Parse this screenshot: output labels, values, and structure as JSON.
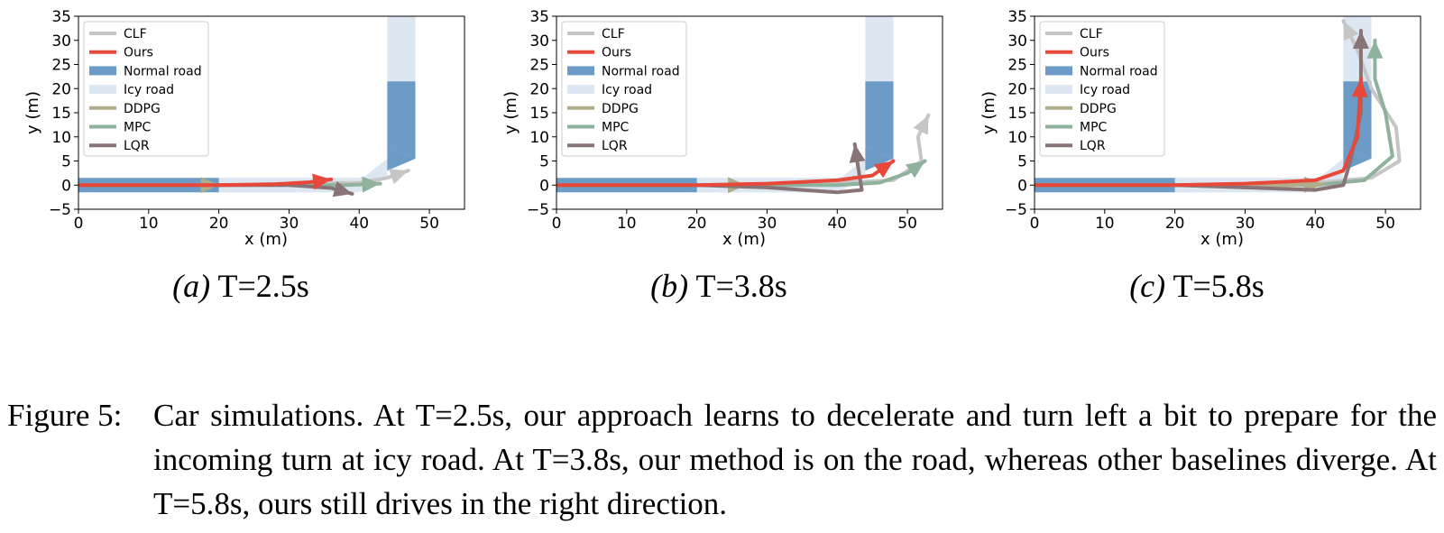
{
  "figure": {
    "number_label": "Figure 5:",
    "caption": "Car simulations. At T=2.5s, our approach learns to decelerate and turn left a bit to prepare for the incoming turn at icy road. At T=3.8s, our method is on the road, whereas other baselines diverge. At T=5.8s, ours still drives in the right direction."
  },
  "colors": {
    "CLF": "#c6c6c6",
    "Ours": "#e8483a",
    "Normal road": "#6b9bc6",
    "Icy road": "#dde7f1",
    "DDPG": "#b1ad8a",
    "MPC": "#8fb29c",
    "LQR": "#887476"
  },
  "legend": [
    {
      "label": "CLF",
      "kind": "line"
    },
    {
      "label": "Ours",
      "kind": "line"
    },
    {
      "label": "Normal road",
      "kind": "patch"
    },
    {
      "label": "Icy road",
      "kind": "patch"
    },
    {
      "label": "DDPG",
      "kind": "line"
    },
    {
      "label": "MPC",
      "kind": "line"
    },
    {
      "label": "LQR",
      "kind": "line"
    }
  ],
  "chart_data": [
    {
      "type": "line",
      "subcaption_letter": "(a)",
      "subcaption_text": "T=2.5s",
      "xlabel": "x (m)",
      "ylabel": "y (m)",
      "xlim": [
        0,
        55
      ],
      "ylim": [
        -5,
        35
      ],
      "xticks": [
        0,
        10,
        20,
        30,
        40,
        50
      ],
      "yticks": [
        -5,
        0,
        5,
        10,
        15,
        20,
        25,
        30,
        35
      ],
      "legend_position": "upper-left",
      "series": [
        {
          "name": "CLF",
          "x": [
            0,
            10,
            20,
            30,
            40,
            44,
            47
          ],
          "y": [
            0,
            0,
            0,
            0.3,
            0.5,
            1.5,
            3.0
          ]
        },
        {
          "name": "MPC",
          "x": [
            0,
            10,
            20,
            30,
            38,
            43
          ],
          "y": [
            0,
            0,
            0,
            0,
            0,
            0.3
          ]
        },
        {
          "name": "DDPG",
          "x": [
            0,
            10,
            20
          ],
          "y": [
            0,
            0,
            0
          ]
        },
        {
          "name": "LQR",
          "x": [
            0,
            10,
            20,
            30,
            36,
            39
          ],
          "y": [
            0,
            0,
            0,
            0,
            -0.6,
            -1.8
          ]
        },
        {
          "name": "Ours",
          "x": [
            0,
            10,
            20,
            28,
            33,
            36
          ],
          "y": [
            0,
            0,
            0,
            0.2,
            0.6,
            1.2
          ]
        }
      ]
    },
    {
      "type": "line",
      "subcaption_letter": "(b)",
      "subcaption_text": "T=3.8s",
      "xlabel": "x (m)",
      "ylabel": "y (m)",
      "xlim": [
        0,
        55
      ],
      "ylim": [
        -5,
        35
      ],
      "xticks": [
        0,
        10,
        20,
        30,
        40,
        50
      ],
      "yticks": [
        -5,
        0,
        5,
        10,
        15,
        20,
        25,
        30,
        35
      ],
      "legend_position": "upper-left",
      "series": [
        {
          "name": "CLF",
          "x": [
            0,
            20,
            40,
            48,
            52,
            51.5,
            53
          ],
          "y": [
            0,
            0,
            0.5,
            1.0,
            5.0,
            10.0,
            14.5
          ]
        },
        {
          "name": "MPC",
          "x": [
            0,
            20,
            40,
            46,
            50,
            52.5
          ],
          "y": [
            0,
            0,
            0,
            0.5,
            2.5,
            5.0
          ]
        },
        {
          "name": "DDPG",
          "x": [
            0,
            10,
            20,
            27
          ],
          "y": [
            0,
            0,
            0,
            0
          ]
        },
        {
          "name": "LQR",
          "x": [
            0,
            20,
            30,
            40,
            43.5,
            43,
            42.5
          ],
          "y": [
            0,
            0,
            -0.5,
            -1.5,
            -1.0,
            3.5,
            8.5
          ]
        },
        {
          "name": "Ours",
          "x": [
            0,
            20,
            30,
            40,
            45,
            48
          ],
          "y": [
            0,
            0,
            0.3,
            1.0,
            2.0,
            5.0
          ]
        }
      ]
    },
    {
      "type": "line",
      "subcaption_letter": "(c)",
      "subcaption_text": "T=5.8s",
      "xlabel": "x (m)",
      "ylabel": "y (m)",
      "xlim": [
        0,
        55
      ],
      "ylim": [
        -5,
        35
      ],
      "xticks": [
        0,
        10,
        20,
        30,
        40,
        50
      ],
      "yticks": [
        -5,
        0,
        5,
        10,
        15,
        20,
        25,
        30,
        35
      ],
      "legend_position": "upper-left",
      "series": [
        {
          "name": "CLF",
          "x": [
            0,
            20,
            40,
            48,
            52,
            51.5,
            48,
            46,
            44
          ],
          "y": [
            0,
            0,
            0.5,
            1.5,
            5.0,
            12.0,
            20.0,
            28.0,
            34.0
          ]
        },
        {
          "name": "MPC",
          "x": [
            0,
            20,
            40,
            47,
            51,
            50,
            48.5,
            48.5
          ],
          "y": [
            0,
            0,
            0,
            1.0,
            6.0,
            15.0,
            22.0,
            30.0
          ]
        },
        {
          "name": "DDPG",
          "x": [
            0,
            10,
            20,
            30,
            36,
            41
          ],
          "y": [
            0,
            0,
            0,
            0,
            0,
            0.2
          ]
        },
        {
          "name": "LQR",
          "x": [
            0,
            20,
            30,
            40,
            44,
            45,
            46.5,
            46.5
          ],
          "y": [
            0,
            0,
            -0.5,
            -1.0,
            0.0,
            5.0,
            15.0,
            32.0
          ]
        },
        {
          "name": "Ours",
          "x": [
            0,
            20,
            30,
            40,
            44,
            46,
            46.5
          ],
          "y": [
            0,
            0,
            0.3,
            1.0,
            3.0,
            10.0,
            22.0
          ]
        }
      ]
    }
  ]
}
